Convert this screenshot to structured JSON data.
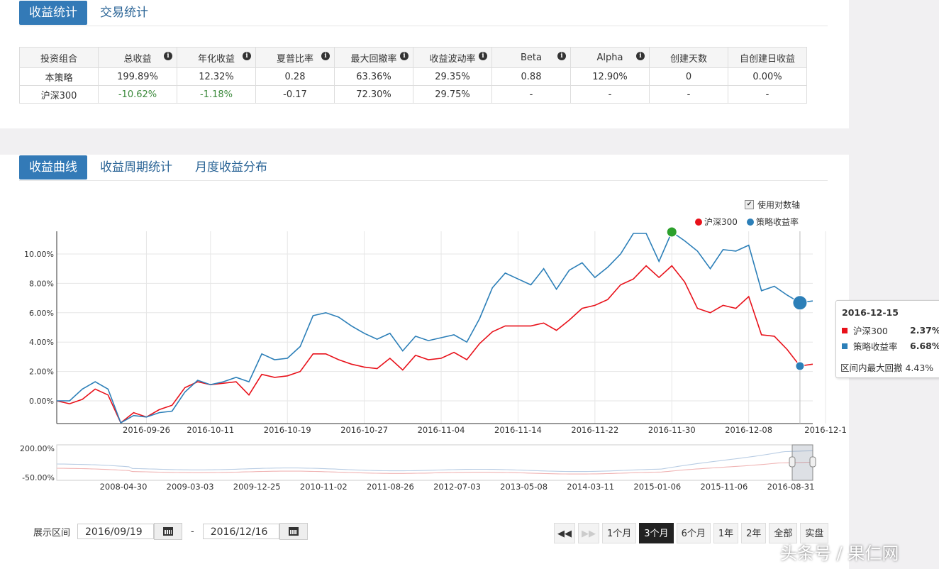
{
  "top_tabs": [
    {
      "label": "收益统计"
    },
    {
      "label": "交易统计"
    }
  ],
  "stats_table": {
    "headers": [
      "投资组合",
      "总收益",
      "年化收益",
      "夏普比率",
      "最大回撤率",
      "收益波动率",
      "Beta",
      "Alpha",
      "创建天数",
      "自创建日收益"
    ],
    "rows": [
      [
        "本策略",
        "199.89%",
        "12.32%",
        "0.28",
        "63.36%",
        "29.35%",
        "0.88",
        "12.90%",
        "0",
        "0.00%"
      ],
      [
        "沪深300",
        "-10.62%",
        "-1.18%",
        "-0.17",
        "72.30%",
        "29.75%",
        "-",
        "-",
        "-",
        "-"
      ]
    ]
  },
  "chart_tabs": [
    {
      "label": "收益曲线"
    },
    {
      "label": "收益周期统计"
    },
    {
      "label": "月度收益分布"
    }
  ],
  "log_axis_label": "使用对数轴",
  "legend": [
    {
      "name": "沪深300",
      "color": "#e8111a"
    },
    {
      "name": "策略收益率",
      "color": "#2c7fb8"
    }
  ],
  "chart_data": {
    "type": "line",
    "y_ticks": [
      "10.00%",
      "8.00%",
      "6.00%",
      "4.00%",
      "2.00%",
      "0.00%"
    ],
    "y_tick_values": [
      10,
      8,
      6,
      4,
      2,
      0
    ],
    "x_ticks": [
      "2016-09-26",
      "2016-10-11",
      "2016-10-19",
      "2016-10-27",
      "2016-11-04",
      "2016-11-14",
      "2016-11-22",
      "2016-11-30",
      "2016-12-08",
      "2016-12-1"
    ],
    "x_tick_index": [
      7,
      12,
      18,
      24,
      30,
      36,
      42,
      48,
      54,
      60
    ],
    "series": [
      {
        "name": "沪深300",
        "color": "#e8111a",
        "values": [
          0.0,
          -0.2,
          0.1,
          0.8,
          0.4,
          -1.5,
          -0.8,
          -1.1,
          -0.6,
          -0.3,
          0.9,
          1.3,
          1.1,
          1.2,
          1.3,
          0.4,
          1.8,
          1.6,
          1.7,
          2.0,
          3.2,
          3.2,
          2.8,
          2.5,
          2.3,
          2.2,
          2.9,
          2.1,
          3.1,
          2.8,
          2.9,
          3.3,
          2.8,
          3.9,
          4.7,
          5.1,
          5.1,
          5.1,
          5.3,
          4.8,
          5.5,
          6.3,
          6.5,
          6.9,
          7.9,
          8.3,
          9.2,
          8.4,
          9.2,
          8.1,
          6.3,
          6.0,
          6.5,
          6.3,
          7.1,
          4.5,
          4.4,
          3.5,
          2.37,
          2.5
        ]
      },
      {
        "name": "策略收益率",
        "color": "#2c7fb8",
        "values": [
          0.0,
          0.0,
          0.8,
          1.3,
          0.8,
          -1.5,
          -1.0,
          -1.1,
          -0.8,
          -0.7,
          0.6,
          1.4,
          1.1,
          1.3,
          1.6,
          1.3,
          3.2,
          2.8,
          2.9,
          3.7,
          5.8,
          6.0,
          5.7,
          5.1,
          4.6,
          4.2,
          4.6,
          3.4,
          4.4,
          4.1,
          4.3,
          4.5,
          4.0,
          5.6,
          7.7,
          8.7,
          8.3,
          7.9,
          9.0,
          7.6,
          8.9,
          9.4,
          8.4,
          9.1,
          10.0,
          11.4,
          11.4,
          9.5,
          11.5,
          10.9,
          10.2,
          9.0,
          10.3,
          10.2,
          10.6,
          7.5,
          7.8,
          7.2,
          6.68,
          6.8
        ]
      }
    ],
    "markers": [
      {
        "series": "策略收益率",
        "index": 48,
        "color": "#2ca02c"
      },
      {
        "series": "策略收益率",
        "index": 58,
        "color": "#2c7fb8"
      },
      {
        "series": "沪深300",
        "index": 58,
        "color": "#2c7fb8"
      }
    ],
    "navigator": {
      "y_ticks": [
        "200.00%",
        "-50.00%"
      ],
      "x_ticks": [
        "2008-04-30",
        "2009-03-03",
        "2009-12-25",
        "2010-11-02",
        "2011-08-26",
        "2012-07-03",
        "2013-05-08",
        "2014-03-11",
        "2015-01-06",
        "2015-11-06",
        "2016-08-31"
      ]
    }
  },
  "tooltip": {
    "date": "2016-12-15",
    "rows": [
      {
        "name": "沪深300",
        "value": "2.37%",
        "color": "#e8111a"
      },
      {
        "name": "策略收益率",
        "value": "6.68%",
        "color": "#2c7fb8"
      }
    ],
    "drawdown": "区间内最大回撤 4.43%"
  },
  "range": {
    "label": "展示区间",
    "start": "2016/09/19",
    "separator": "-",
    "end": "2016/12/16"
  },
  "range_buttons": [
    {
      "label": "◀◀",
      "kind": "nav"
    },
    {
      "label": "▶▶",
      "kind": "nav"
    },
    {
      "label": "1个月"
    },
    {
      "label": "3个月",
      "active": true
    },
    {
      "label": "6个月"
    },
    {
      "label": "1年"
    },
    {
      "label": "2年"
    },
    {
      "label": "全部"
    },
    {
      "label": "实盘"
    }
  ],
  "watermark": "头条号 / 果仁网"
}
